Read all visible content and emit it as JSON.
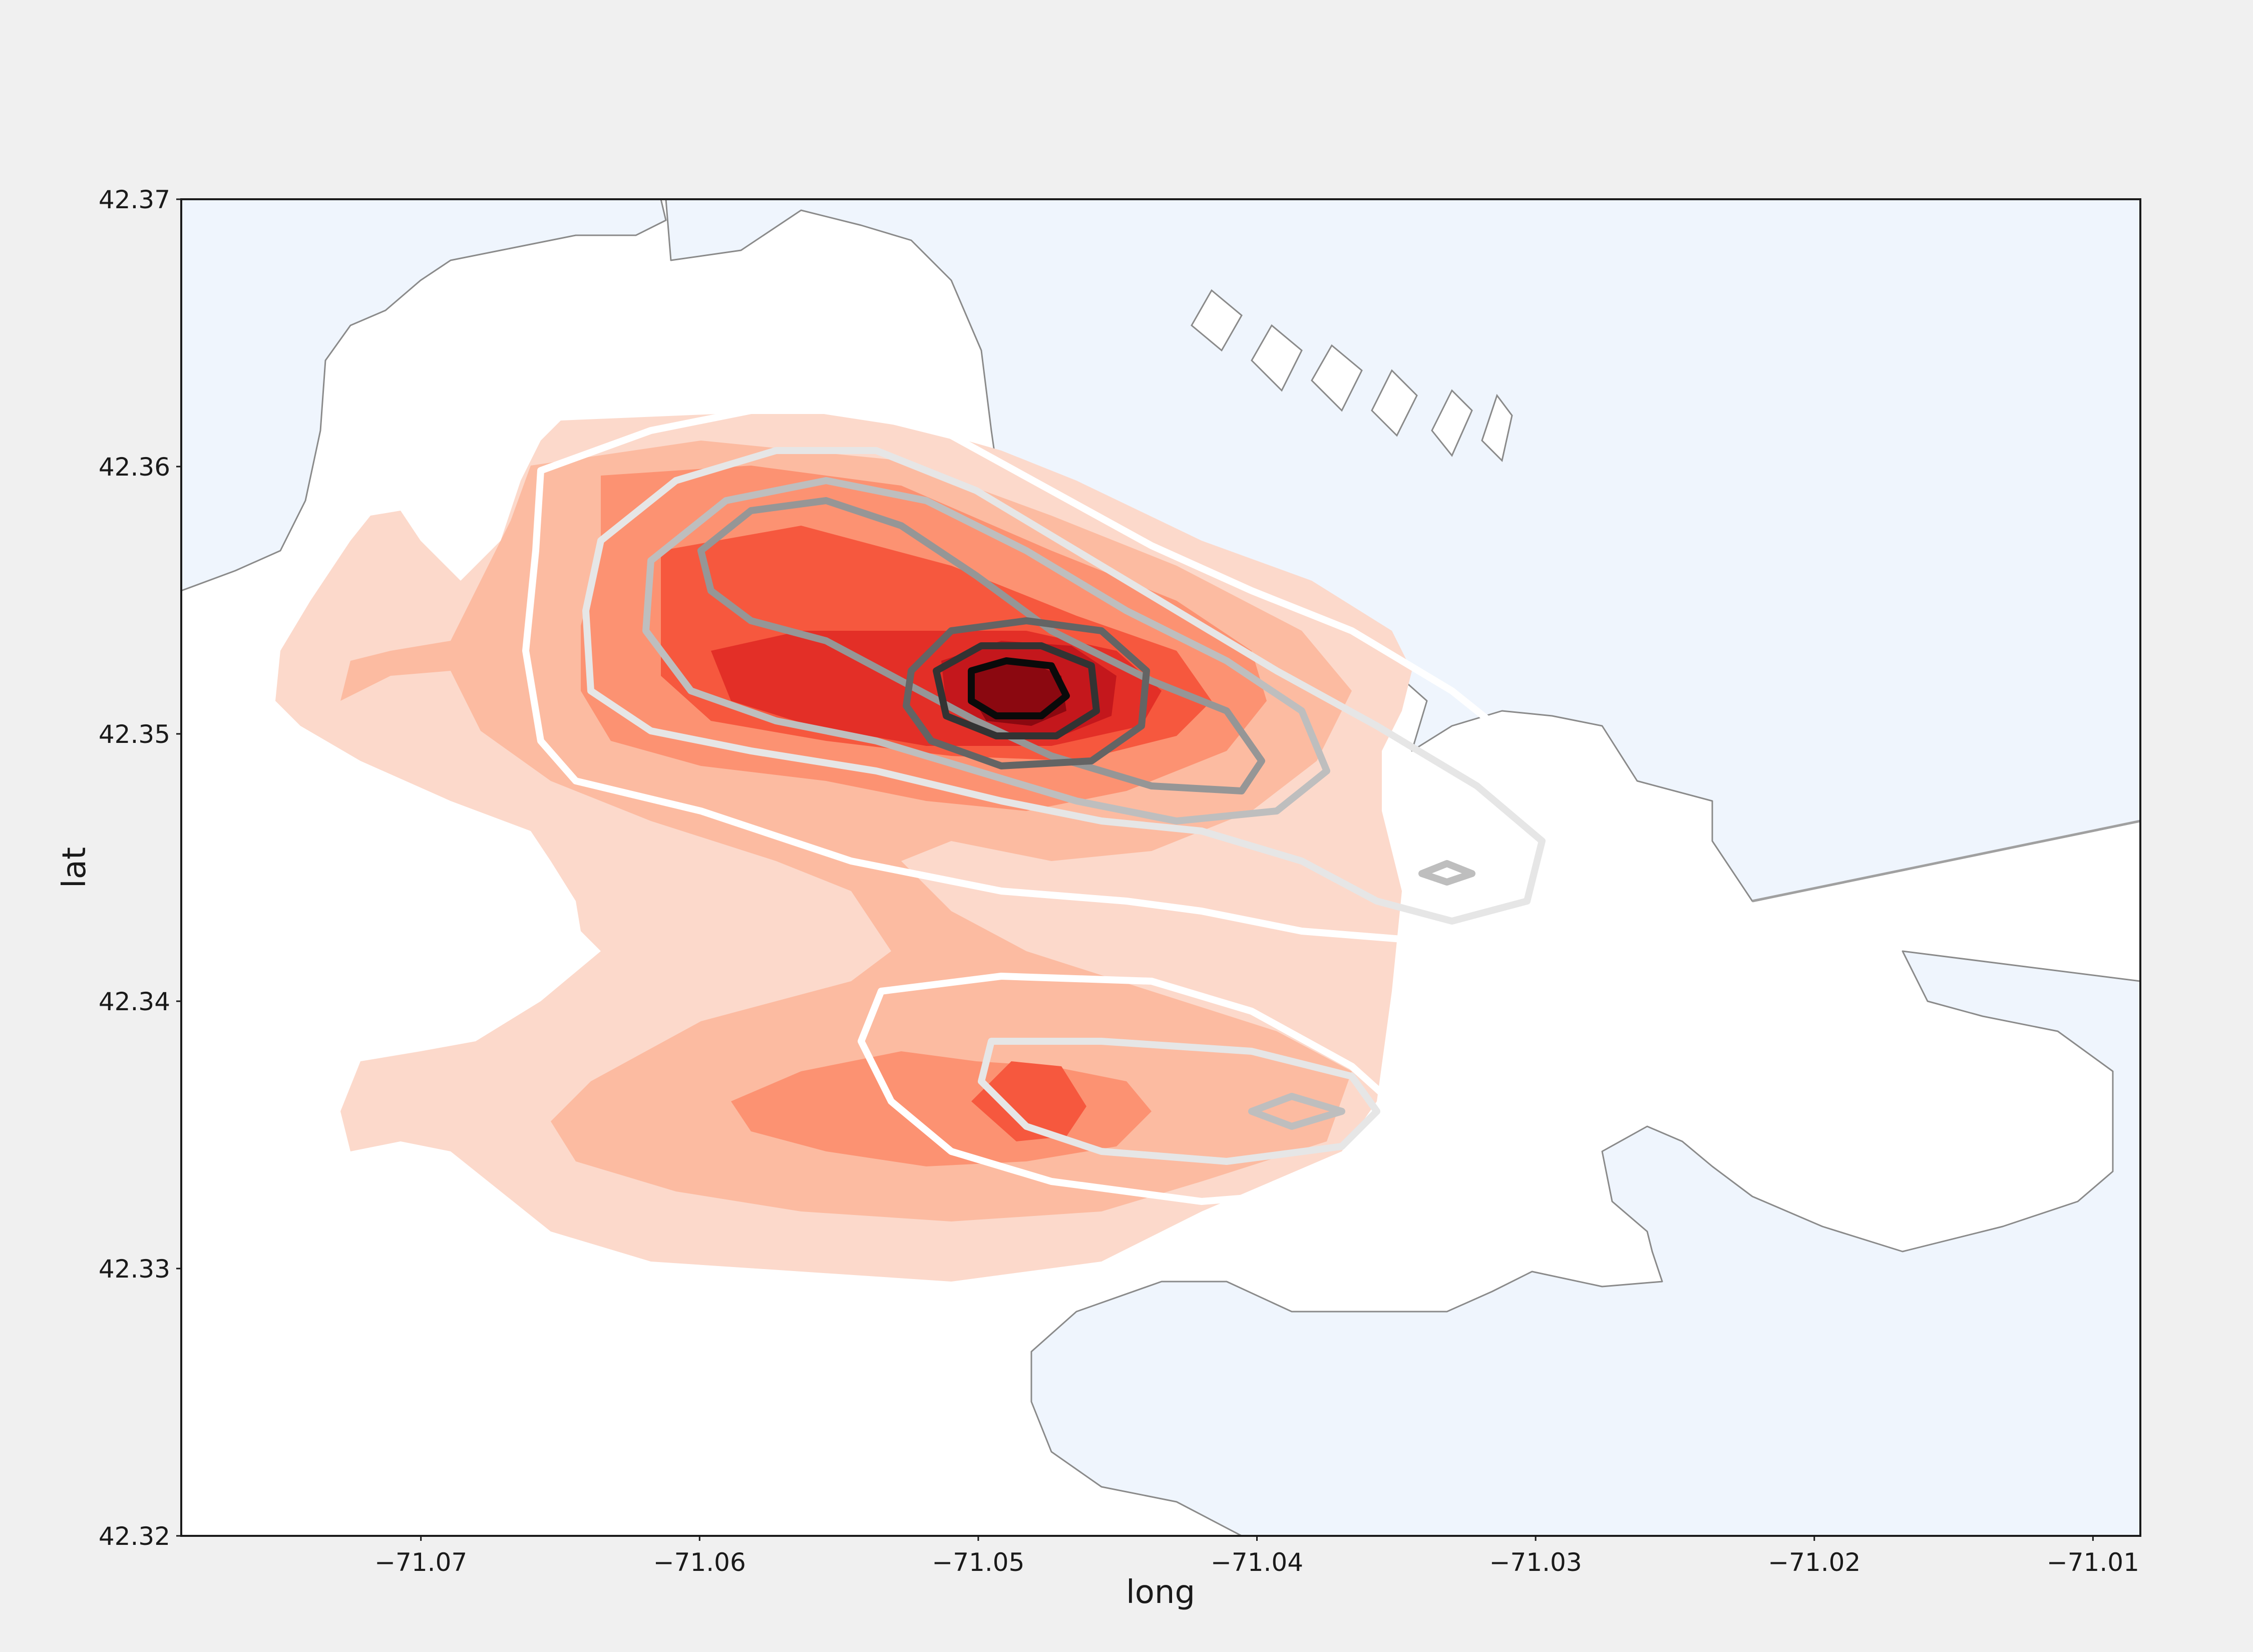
{
  "chart_data": {
    "type": "kde_contour_map",
    "xlabel": "long",
    "ylabel": "lat",
    "xlim": [
      -71.0786,
      -71.0083
    ],
    "ylim": [
      42.32,
      42.37
    ],
    "x_ticks": [
      -71.07,
      -71.06,
      -71.05,
      -71.04,
      -71.03,
      -71.02,
      -71.01
    ],
    "x_tick_labels": [
      "−71.07",
      "−71.06",
      "−71.05",
      "−71.04",
      "−71.03",
      "−71.02",
      "−71.01"
    ],
    "y_ticks": [
      42.32,
      42.33,
      42.34,
      42.35,
      42.36,
      42.37
    ],
    "y_tick_labels": [
      "42.32",
      "42.33",
      "42.34",
      "42.35",
      "42.36",
      "42.37"
    ],
    "grid": false,
    "colors": {
      "figure_background": "#f0f0f0",
      "plot_background": "#ffffff",
      "water": "#eff5fd",
      "coastline": "#8a8a8a",
      "filled_levels": [
        "#fcd9cb",
        "#fcbba1",
        "#fc9272",
        "#f6583e",
        "#e32f27",
        "#c4171c",
        "#8b0810"
      ],
      "line_levels": [
        "#ffffff",
        "#e6e6e6",
        "#bebebe",
        "#969696",
        "#646464",
        "#333333",
        "#0a0a0a"
      ]
    },
    "series": [
      {
        "kind": "filled_density",
        "peaks": [
          {
            "long": -71.0475,
            "lat": 42.3515,
            "levels": 7
          },
          {
            "long": -71.0555,
            "lat": 42.3515,
            "levels": 6
          },
          {
            "long": -71.0475,
            "lat": 42.3365,
            "levels": 4
          },
          {
            "long": -71.0745,
            "lat": 42.3513,
            "levels": 2
          }
        ]
      },
      {
        "kind": "line_density",
        "peaks": [
          {
            "long": -71.0478,
            "lat": 42.3515,
            "levels": 7
          },
          {
            "long": -71.0545,
            "lat": 42.3575,
            "levels": 4
          },
          {
            "long": -71.0382,
            "lat": 42.3365,
            "levels": 3
          },
          {
            "long": -71.0328,
            "lat": 42.345,
            "levels": 2
          }
        ]
      }
    ]
  }
}
